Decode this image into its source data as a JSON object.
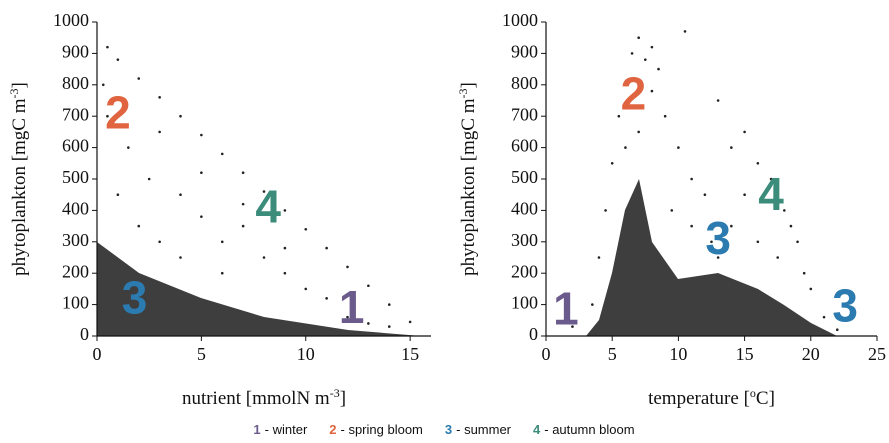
{
  "chart_data": [
    {
      "type": "scatter",
      "color": "#222222",
      "xlabel": {
        "text": "nutrient [mmolN m",
        "sup": "-3",
        "tail": "]"
      },
      "ylabel": {
        "text": "phytoplankton [mgC m",
        "sup": "-3",
        "tail": "]"
      },
      "xlim": [
        0,
        16
      ],
      "xticks": [
        0,
        5,
        10,
        15
      ],
      "ylim": [
        0,
        1000
      ],
      "yticks": [
        0,
        100,
        200,
        300,
        400,
        500,
        600,
        700,
        800,
        900,
        1000
      ],
      "x": [
        1,
        2,
        3,
        4,
        5,
        6,
        7,
        8,
        9,
        10,
        11,
        12,
        13,
        14,
        15,
        0.5,
        1.5,
        2.5,
        3,
        4,
        5,
        6,
        7,
        8,
        9,
        10,
        11,
        0.5,
        1,
        2,
        3,
        4,
        6,
        12,
        13,
        14,
        0.3,
        5,
        7,
        9
      ],
      "values": [
        880,
        820,
        760,
        700,
        640,
        580,
        520,
        460,
        400,
        340,
        280,
        220,
        160,
        100,
        45,
        920,
        600,
        500,
        650,
        450,
        380,
        300,
        350,
        250,
        200,
        150,
        120,
        700,
        450,
        350,
        300,
        250,
        200,
        60,
        40,
        30,
        800,
        520,
        420,
        280
      ],
      "annotations": [
        {
          "text": "2",
          "color": "#e0643f"
        },
        {
          "text": "3",
          "color": "#2b7bb0"
        },
        {
          "text": "4",
          "color": "#3b8c7a"
        },
        {
          "text": "1",
          "color": "#6b5b8c"
        }
      ]
    },
    {
      "type": "scatter",
      "color": "#222222",
      "xlabel": {
        "text": "temperature [",
        "sup": "o",
        "tail": "C]"
      },
      "ylabel": {
        "text": "phytoplankton [mgC m",
        "sup": "-3",
        "tail": "]"
      },
      "xlim": [
        0,
        25
      ],
      "xticks": [
        0,
        5,
        10,
        15,
        20,
        25
      ],
      "ylim": [
        0,
        1000
      ],
      "yticks": [
        0,
        100,
        200,
        300,
        400,
        500,
        600,
        700,
        800,
        900,
        1000
      ],
      "x": [
        5,
        5.5,
        6,
        6.5,
        7,
        7.5,
        8,
        8.5,
        9,
        10,
        11,
        12,
        13,
        14,
        15,
        16,
        17,
        18,
        19,
        20,
        4.5,
        4,
        3.5,
        2,
        9.5,
        11,
        12.5,
        14,
        16,
        17.5,
        21,
        22,
        10.5,
        7,
        6,
        15,
        18.5,
        8,
        13,
        19.5
      ],
      "values": [
        550,
        700,
        800,
        900,
        950,
        880,
        920,
        850,
        700,
        600,
        500,
        450,
        750,
        600,
        650,
        550,
        500,
        400,
        300,
        150,
        400,
        250,
        100,
        30,
        400,
        350,
        300,
        350,
        300,
        250,
        60,
        20,
        970,
        650,
        600,
        450,
        350,
        780,
        250,
        200
      ],
      "annotations": [
        {
          "text": "1",
          "color": "#6b5b8c"
        },
        {
          "text": "2",
          "color": "#e0643f"
        },
        {
          "text": "3",
          "color": "#2b7bb0"
        },
        {
          "text": "4",
          "color": "#3b8c7a"
        },
        {
          "text": "3",
          "color": "#2b7bb0"
        }
      ]
    }
  ],
  "legend": [
    {
      "number": "1",
      "label": "- winter",
      "color": "#6b5b8c"
    },
    {
      "number": "2",
      "label": "- spring bloom",
      "color": "#e0643f"
    },
    {
      "number": "3",
      "label": "- summer",
      "color": "#2b7bb0"
    },
    {
      "number": "4",
      "label": "- autumn bloom",
      "color": "#3b8c7a"
    }
  ]
}
